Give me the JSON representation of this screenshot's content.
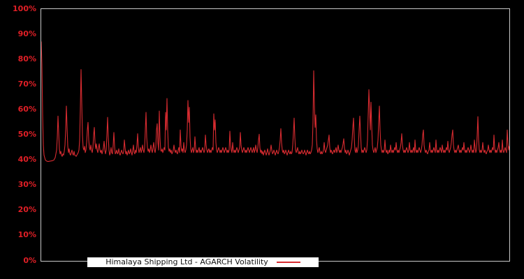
{
  "chart_data": {
    "type": "line",
    "title": "",
    "xlabel": "",
    "ylabel": "",
    "ylim": [
      0,
      100
    ],
    "grid": false,
    "legend_position": "bottom-inside",
    "x_unit": "observation-index",
    "yticks": [
      {
        "label": "0%",
        "value": 0
      },
      {
        "label": "10%",
        "value": 10
      },
      {
        "label": "20%",
        "value": 20
      },
      {
        "label": "30%",
        "value": 30
      },
      {
        "label": "40%",
        "value": 40
      },
      {
        "label": "50%",
        "value": 50
      },
      {
        "label": "60%",
        "value": 60
      },
      {
        "label": "70%",
        "value": 70
      },
      {
        "label": "80%",
        "value": 80
      },
      {
        "label": "90%",
        "value": 90
      },
      {
        "label": "100%",
        "value": 100
      }
    ],
    "series": [
      {
        "name": "Himalaya Shipping Ltd - AGARCH Volatility",
        "color": "#d62b30",
        "unit": "%",
        "values": [
          87,
          78,
          58,
          46,
          42,
          41,
          40,
          39.8,
          39.6,
          39.5,
          39.5,
          39.5,
          39.6,
          39.6,
          39.7,
          39.7,
          39.8,
          39.9,
          40,
          40.5,
          41,
          42.5,
          44,
          49,
          57.5,
          51,
          44.5,
          42.5,
          43.5,
          42,
          41.5,
          42.5,
          42,
          43.5,
          46,
          52,
          61.5,
          53,
          45.5,
          43,
          44.5,
          42.5,
          42,
          43,
          44,
          42.5,
          42,
          43.5,
          42,
          41.8,
          41.5,
          42,
          42.5,
          43,
          44,
          48,
          60,
          76,
          63,
          50,
          45,
          44,
          45.5,
          43,
          44,
          47,
          52,
          55,
          48,
          45,
          44,
          46,
          44,
          43,
          45,
          50,
          53,
          47,
          44.5,
          46.5,
          44,
          43,
          45,
          46.5,
          44,
          43,
          44,
          42.5,
          43.5,
          45,
          47.5,
          44,
          42.5,
          44,
          50,
          57,
          49,
          44,
          42,
          43,
          45,
          43,
          42.5,
          46,
          51,
          45.5,
          42.5,
          43,
          44,
          42.5,
          43,
          44.5,
          42.5,
          42,
          43,
          44,
          43,
          42.5,
          43.5,
          48,
          45,
          42.5,
          43.5,
          42,
          43,
          44,
          42.5,
          43,
          44.5,
          43,
          42,
          44,
          46,
          43,
          42.5,
          44,
          43,
          46,
          50.5,
          45,
          43,
          44,
          45,
          43,
          44,
          46,
          44,
          43,
          45,
          52,
          59,
          49,
          45,
          43.5,
          44.5,
          43,
          44,
          46,
          44,
          43,
          45,
          47,
          44,
          43,
          45,
          52,
          54.5,
          47,
          44,
          59.5,
          49,
          44,
          43.5,
          44.5,
          43,
          44,
          45,
          44,
          59,
          52,
          64.5,
          52,
          45,
          43.5,
          44.5,
          43,
          44,
          42.5,
          43,
          44,
          46,
          44,
          43,
          44,
          43,
          42.5,
          44,
          45,
          43,
          52,
          46,
          43.5,
          44.5,
          43,
          47,
          44,
          43,
          44,
          46,
          52,
          63.7,
          55,
          61,
          49,
          44.5,
          43,
          44,
          45,
          43,
          44,
          49.3,
          45,
          43,
          44,
          43,
          44,
          45,
          43,
          44,
          43,
          44,
          45,
          44,
          43,
          44,
          50,
          46,
          44,
          43,
          44,
          44.5,
          43,
          44,
          43,
          44,
          45,
          44,
          58.4,
          52,
          56,
          47,
          44,
          43,
          44,
          45,
          44,
          43,
          44,
          43,
          44,
          45,
          44,
          43,
          44,
          45,
          44,
          43,
          44,
          43,
          44,
          51.5,
          46,
          44,
          43,
          47,
          44,
          43,
          44,
          43,
          44,
          45,
          44,
          43,
          44,
          45,
          51,
          46,
          44,
          43,
          44,
          45,
          44,
          43,
          44,
          43,
          44,
          45,
          44,
          43,
          44,
          45,
          44,
          43,
          44,
          45,
          43,
          44,
          46,
          44,
          43,
          45,
          48,
          50.3,
          45,
          43,
          44,
          42.5,
          43.5,
          42,
          43,
          44,
          43,
          42,
          43,
          44.5,
          43,
          42,
          43,
          44,
          46,
          44,
          42.5,
          43,
          44,
          43,
          42,
          43,
          44,
          43,
          42.5,
          43.5,
          45,
          48,
          52.5,
          47,
          44,
          43,
          44,
          42.5,
          43,
          44,
          43,
          42,
          43,
          44,
          43,
          42.5,
          43.5,
          42.5,
          43,
          46,
          51,
          56.7,
          49,
          44,
          43,
          44,
          45,
          43,
          42.5,
          43.5,
          42.5,
          43,
          44,
          43,
          42.5,
          43,
          44,
          43,
          42,
          43,
          44,
          43,
          42.5,
          43.5,
          42.5,
          43,
          44,
          46,
          55,
          75.5,
          62,
          53,
          58,
          48,
          44.5,
          43,
          44,
          45,
          43,
          42.5,
          43.5,
          42.5,
          43,
          44,
          47,
          44,
          43,
          44,
          45,
          46,
          48,
          50,
          45,
          43,
          44,
          43,
          42.5,
          43.5,
          44,
          43,
          44,
          45,
          43,
          44,
          46,
          44,
          43,
          44,
          43,
          44,
          45,
          46.5,
          48.5,
          45,
          43,
          44,
          42.5,
          43,
          44,
          43,
          42,
          43,
          44,
          45,
          48,
          53,
          56.7,
          49,
          44,
          43,
          45,
          43,
          44,
          46,
          52,
          57.5,
          51,
          45,
          43,
          44,
          43,
          44,
          45,
          44,
          43,
          44,
          48,
          58,
          68,
          60,
          52,
          63,
          54,
          46,
          44,
          43,
          44,
          45,
          43,
          44,
          45,
          48,
          55,
          61.5,
          52,
          46,
          44,
          43,
          44,
          43,
          44,
          48,
          44,
          43,
          44,
          42.5,
          43,
          44,
          43,
          46,
          44,
          43,
          44,
          43,
          44,
          45,
          44,
          47,
          44,
          43,
          44,
          43,
          44,
          45,
          47,
          50.5,
          46,
          44,
          43,
          44,
          43,
          44,
          45,
          44,
          43,
          44,
          47,
          44,
          43,
          44,
          43,
          44,
          45,
          43,
          48,
          44,
          43,
          44,
          43,
          44,
          45,
          44,
          43,
          44,
          46,
          50,
          52,
          46,
          44,
          43,
          44,
          43,
          42.5,
          43.5,
          44,
          47,
          44,
          43,
          44,
          43,
          44,
          45,
          44,
          43,
          48,
          44,
          43,
          44,
          43,
          44,
          45,
          44,
          43,
          46,
          44,
          43,
          44,
          43,
          44,
          45,
          44,
          47.5,
          44,
          43,
          44,
          45,
          47,
          50,
          52,
          46,
          44,
          43,
          44,
          43,
          44,
          45,
          46,
          44,
          43,
          44,
          43,
          44,
          45,
          44,
          47,
          44,
          43,
          44,
          43,
          44,
          45,
          44,
          43,
          44,
          46,
          44,
          43,
          44,
          43,
          48,
          45,
          43,
          44,
          50,
          57.3,
          48,
          44,
          43,
          44,
          43,
          44,
          47,
          44,
          43,
          44,
          43,
          42.5,
          43.5,
          44,
          46,
          44,
          43,
          44,
          43,
          44,
          45,
          44,
          50,
          45,
          43,
          44,
          43,
          44,
          45,
          47,
          44,
          43,
          44,
          43,
          48,
          44,
          43,
          44,
          45,
          44,
          43,
          52,
          47,
          44,
          45.5
        ]
      }
    ],
    "colors": {
      "background": "#000000",
      "plot_border": "#c9c9c9",
      "axis_text": "#e01f26",
      "line": "#d62b30",
      "legend_background": "#ffffff",
      "legend_text": "#111111"
    }
  }
}
